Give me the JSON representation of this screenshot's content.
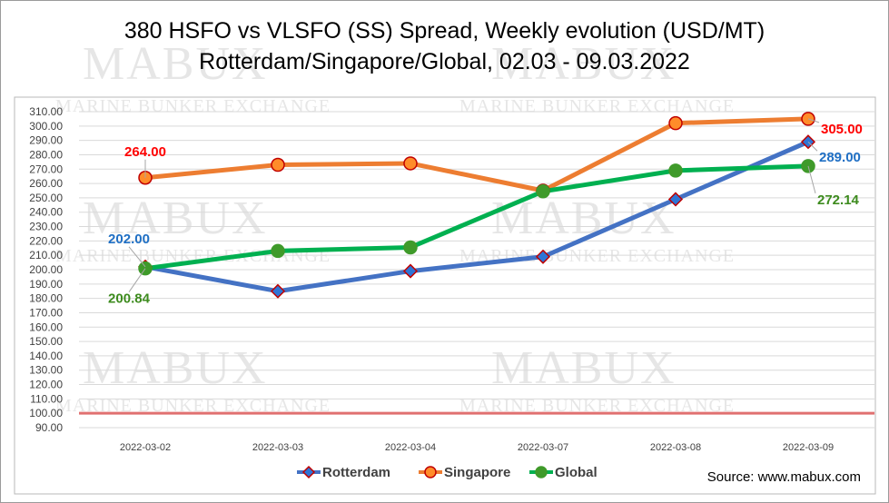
{
  "page": {
    "title_line1": "380 HSFO vs VLSFO (SS) Spread, Weekly evolution (USD/MT)",
    "title_line2": "Rotterdam/Singapore/Global, 02.03 - 09.03.2022",
    "source": "Source: www.mabux.com",
    "watermark_main": "MABUX",
    "watermark_sub": "MARINE BUNKER EXCHANGE"
  },
  "chart_data": {
    "type": "line",
    "title": "380 HSFO vs VLSFO (SS) Spread, Weekly evolution (USD/MT) Rotterdam/Singapore/Global, 02.03 - 09.03.2022",
    "categories": [
      "2022-03-02",
      "2022-03-03",
      "2022-03-04",
      "2022-03-07",
      "2022-03-08",
      "2022-03-09"
    ],
    "ylim": [
      90,
      310
    ],
    "ytick_step": 10,
    "ytick_decimals": 2,
    "grid": true,
    "legend_position": "bottom",
    "reference_line": {
      "value": 100,
      "color": "#e07070"
    },
    "series": [
      {
        "name": "Rotterdam",
        "values": [
          202.0,
          185.0,
          199.0,
          209.0,
          249.0,
          289.0
        ],
        "color": "#4472c4",
        "marker": "diamond",
        "marker_fill": "#2e75d6",
        "marker_edge": "#c00000",
        "labels": [
          {
            "index": 0,
            "text": "202.00",
            "color": "#1f6fc4"
          },
          {
            "index": 5,
            "text": "289.00",
            "color": "#1f6fc4"
          }
        ]
      },
      {
        "name": "Singapore",
        "values": [
          264.0,
          273.0,
          274.0,
          255.0,
          302.0,
          305.0
        ],
        "color": "#ed7d31",
        "marker": "circle",
        "marker_fill": "#ff8c2a",
        "marker_edge": "#c00000",
        "labels": [
          {
            "index": 0,
            "text": "264.00",
            "color": "#ff0000"
          },
          {
            "index": 5,
            "text": "305.00",
            "color": "#ff0000"
          }
        ]
      },
      {
        "name": "Global",
        "values": [
          200.84,
          213.0,
          215.5,
          254.5,
          269.0,
          272.14
        ],
        "color": "#00b050",
        "marker": "circle",
        "marker_fill": "#3f9a2a",
        "marker_edge": "#3f9a2a",
        "labels": [
          {
            "index": 0,
            "text": "200.84",
            "color": "#3d8b1e"
          },
          {
            "index": 5,
            "text": "272.14",
            "color": "#3d8b1e"
          }
        ]
      }
    ]
  }
}
